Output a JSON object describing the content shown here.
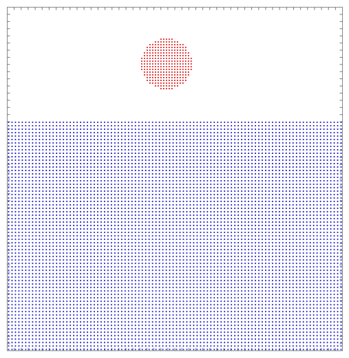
{
  "scene": {
    "kind": "particle-simulation",
    "description_visible_text": "",
    "domain_extent": {
      "x": [
        0,
        1
      ],
      "y": [
        0,
        1
      ]
    },
    "ticks": {
      "x_count": 48,
      "y_count": 48,
      "sides": [
        "top",
        "left",
        "right",
        "bottom"
      ]
    }
  },
  "colors": {
    "frame": "#888888",
    "tick": "#777777",
    "water": "#1414c8",
    "ball": "#e01010",
    "background": "#ffffff"
  },
  "water_block": {
    "name": "fluid",
    "x_range": [
      0.0,
      1.0
    ],
    "y_range": [
      0.0,
      0.665
    ],
    "columns": 98,
    "rows": 67
  },
  "sphere": {
    "name": "ball",
    "center": [
      0.475,
      0.835
    ],
    "radius": 0.076,
    "spacing": 0.0082
  }
}
